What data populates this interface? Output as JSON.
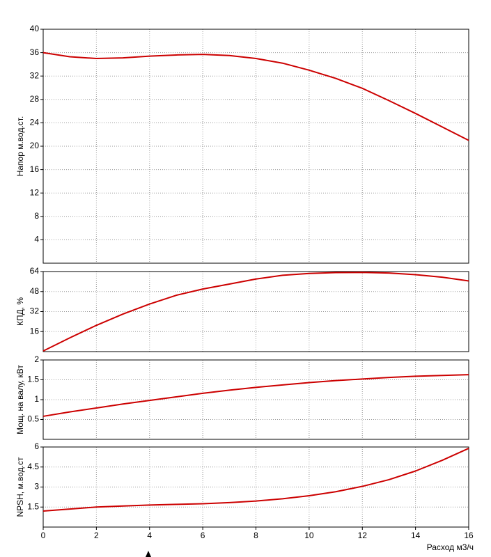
{
  "chart_data": [
    {
      "type": "line",
      "ylabel": "Напор м.вод.ст.",
      "x": [
        0,
        1,
        2,
        3,
        4,
        5,
        6,
        7,
        8,
        9,
        10,
        11,
        12,
        13,
        14,
        15,
        16
      ],
      "xlim": [
        0,
        16
      ],
      "values": [
        36,
        35.3,
        35,
        35.1,
        35.4,
        35.6,
        35.7,
        35.5,
        35,
        34.2,
        33,
        31.6,
        29.9,
        27.8,
        25.6,
        23.3,
        21
      ],
      "color": "#cc0000",
      "ylim": [
        0,
        40
      ],
      "yticks": [
        4,
        8,
        12,
        16,
        20,
        24,
        28,
        32,
        36,
        40
      ],
      "grid": true
    },
    {
      "type": "line",
      "ylabel": "КПД, %",
      "x": [
        0,
        1,
        2,
        3,
        4,
        5,
        6,
        7,
        8,
        9,
        10,
        11,
        12,
        13,
        14,
        15,
        16
      ],
      "xlim": [
        0,
        16
      ],
      "values": [
        0.5,
        11,
        21,
        30,
        38,
        45,
        50,
        54,
        58,
        61,
        62.5,
        63.2,
        63.3,
        62.8,
        61.5,
        59.5,
        56.5
      ],
      "color": "#cc0000",
      "ylim": [
        0,
        64
      ],
      "yticks": [
        16,
        32,
        48,
        64
      ],
      "grid": true
    },
    {
      "type": "line",
      "ylabel": "Мощ. на валу, кВт",
      "x": [
        0,
        1,
        2,
        3,
        4,
        5,
        6,
        7,
        8,
        9,
        10,
        11,
        12,
        13,
        14,
        15,
        16
      ],
      "xlim": [
        0,
        16
      ],
      "values": [
        0.58,
        0.69,
        0.79,
        0.89,
        0.98,
        1.07,
        1.16,
        1.24,
        1.31,
        1.37,
        1.43,
        1.48,
        1.52,
        1.56,
        1.59,
        1.61,
        1.63
      ],
      "color": "#cc0000",
      "ylim": [
        0,
        2
      ],
      "yticks": [
        0.5,
        1,
        1.5,
        2
      ],
      "grid": true
    },
    {
      "type": "line",
      "ylabel": "NPSH, м.вод.ст",
      "xlabel": "Расход м3/ч",
      "x": [
        0,
        1,
        2,
        3,
        4,
        5,
        6,
        7,
        8,
        9,
        10,
        11,
        12,
        13,
        14,
        15,
        16
      ],
      "xlim": [
        0,
        16
      ],
      "xticks": [
        0,
        2,
        4,
        6,
        8,
        10,
        12,
        14,
        16
      ],
      "values": [
        1.2,
        1.35,
        1.5,
        1.58,
        1.65,
        1.7,
        1.75,
        1.83,
        1.95,
        2.12,
        2.35,
        2.65,
        3.05,
        3.55,
        4.2,
        5,
        5.9
      ],
      "color": "#cc0000",
      "ylim": [
        0,
        6
      ],
      "yticks": [
        1.5,
        3,
        4.5,
        6
      ],
      "grid": true
    }
  ]
}
